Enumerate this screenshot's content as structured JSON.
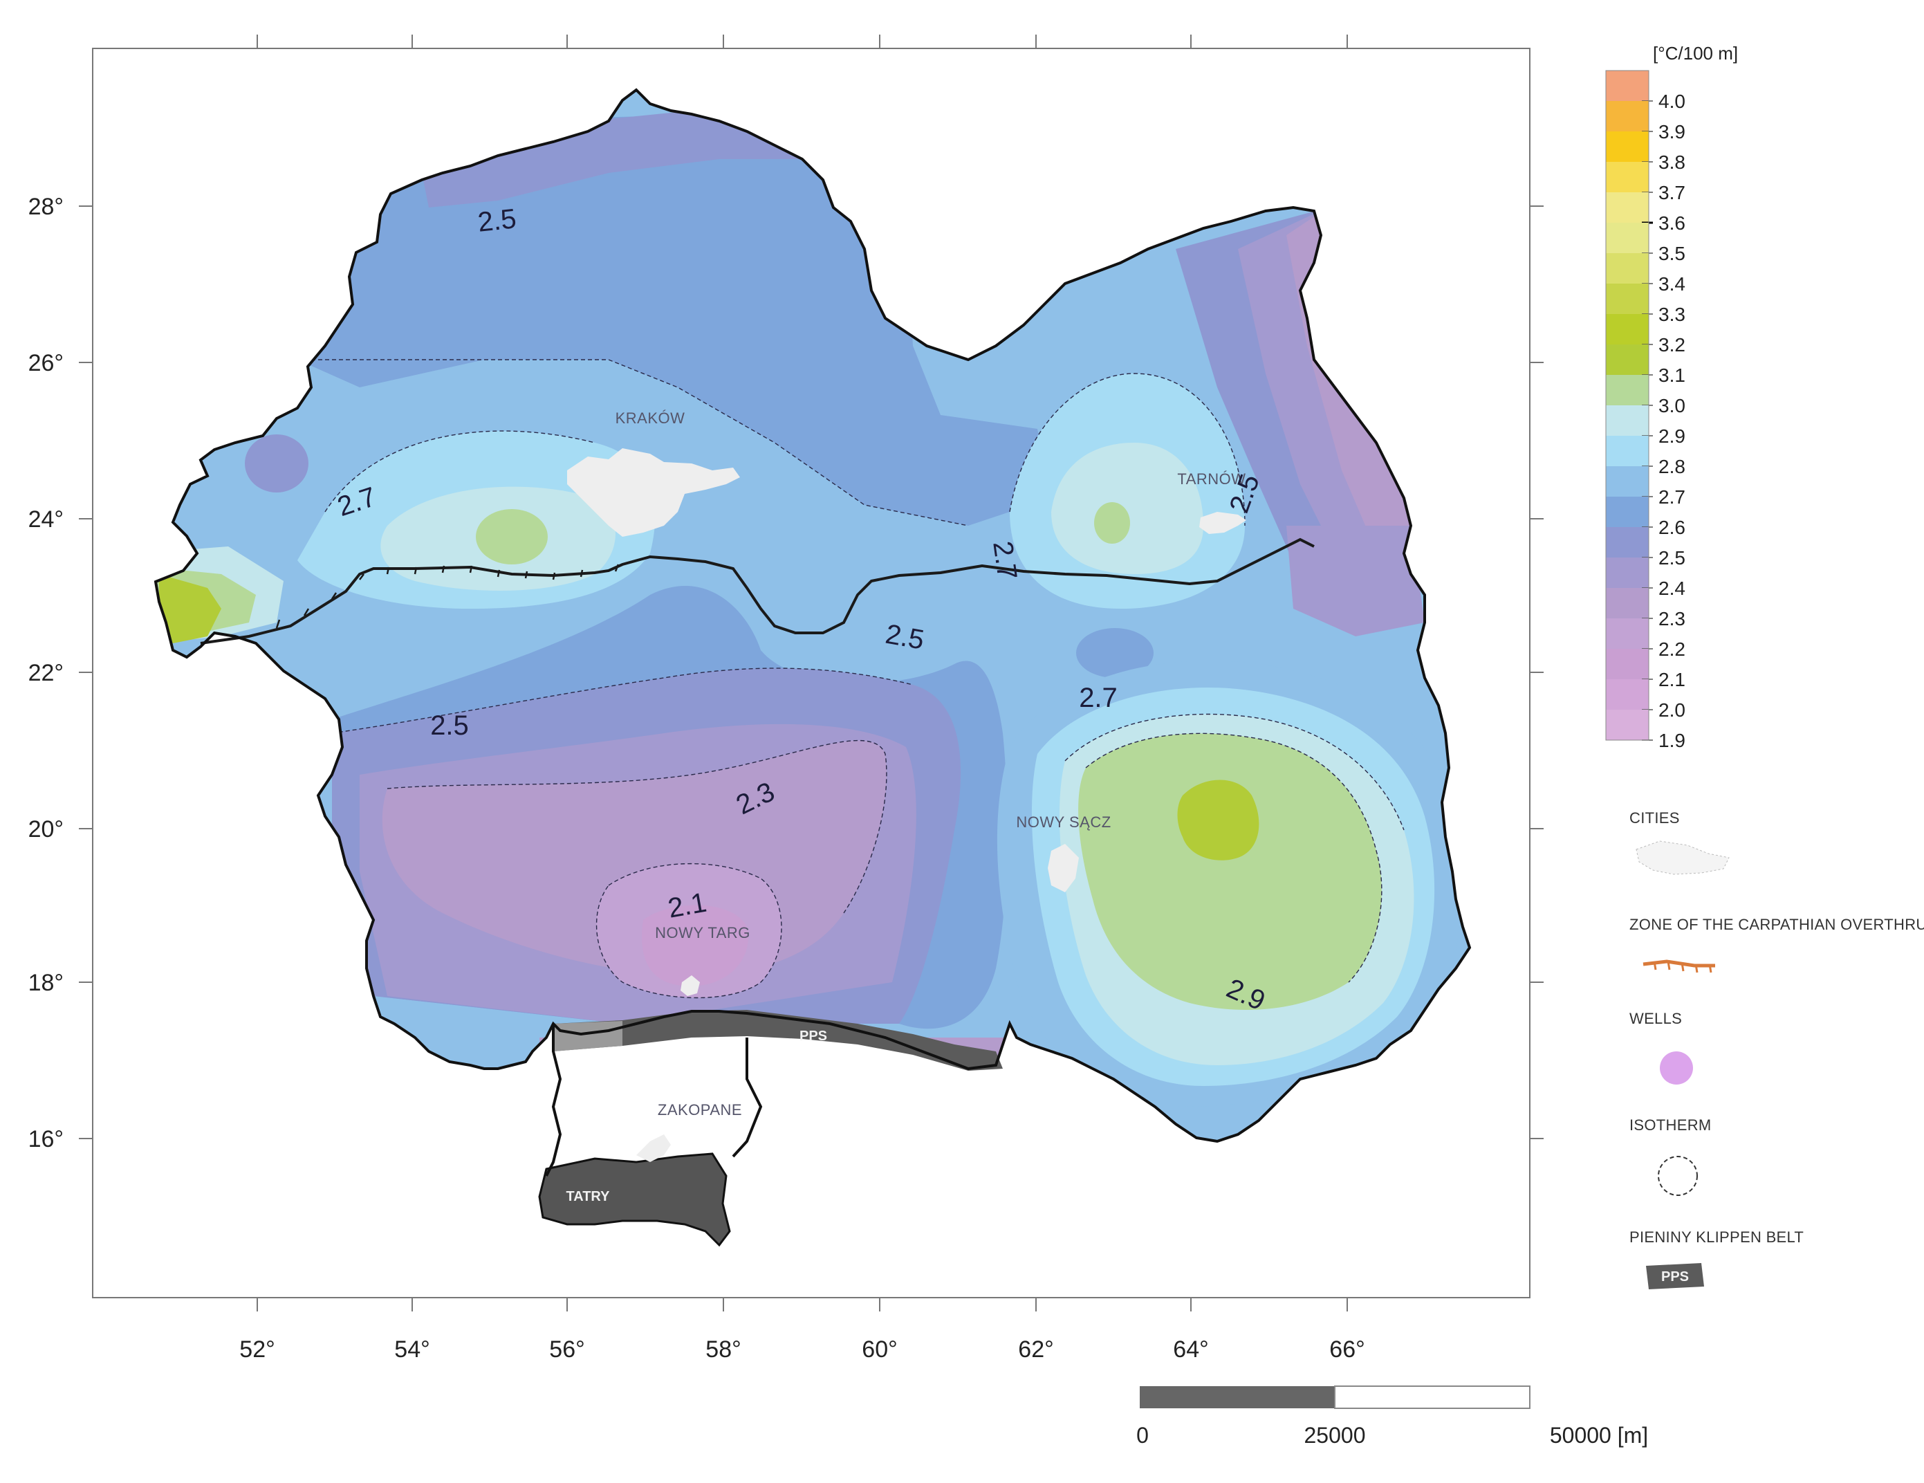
{
  "axes": {
    "x_ticks": [
      "52°",
      "54°",
      "56°",
      "58°",
      "60°",
      "62°",
      "64°",
      "66°"
    ],
    "y_ticks": [
      "28°",
      "26°",
      "24°",
      "22°",
      "20°",
      "18°",
      "16°"
    ]
  },
  "legend": {
    "unit": "[°C/100 m]",
    "values": [
      "4.0",
      "3.9",
      "3.8",
      "3.7",
      "3.6",
      "3.5",
      "3.4",
      "3.3",
      "3.2",
      "3.1",
      "3.0",
      "2.9",
      "2.8",
      "2.7",
      "2.6",
      "2.5",
      "2.4",
      "2.3",
      "2.2",
      "2.1",
      "2.0",
      "1.9"
    ],
    "colors": [
      "#f3a27a",
      "#f6b63a",
      "#f8ca1a",
      "#f6dc52",
      "#f0e888",
      "#e6e88a",
      "#dadf6a",
      "#c7d44a",
      "#bace2a",
      "#b2cc38",
      "#b5d999",
      "#c3e6ec",
      "#a6dcf4",
      "#8fc0e8",
      "#7ea6dc",
      "#8e98d2",
      "#a39ad0",
      "#b49ccc",
      "#c2a3d4",
      "#c99fd2",
      "#d2a6d8",
      "#d9b0dc"
    ]
  },
  "symbols": {
    "cities_title": "CITIES",
    "overthrust_title": "ZONE OF THE CARPATHIAN OVERTHRUST",
    "wells_title": "WELLS",
    "isotherm_title": "ISOTHERM",
    "klippen_title": "PIENINY KLIPPEN BELT",
    "klippen_abbr": "PPS"
  },
  "map": {
    "cities": [
      "KRAKÓW",
      "TARNÓW",
      "NOWY SĄCZ",
      "NOWY TARG",
      "ZAKOPANE"
    ],
    "tatry_label": "TATRY",
    "pps_label": "PPS",
    "contour_labels": [
      "2.5",
      "2.7",
      "2.7",
      "2.5",
      "2.5",
      "2.5",
      "2.7",
      "2.3",
      "2.1",
      "2.9"
    ]
  },
  "scale_bar": {
    "labels": [
      "0",
      "25000",
      "50000 [m]"
    ]
  },
  "colors": {
    "frame": "#777777",
    "border": "#111111",
    "belt": "#5b5b5b",
    "city_fill": "#eeeeee",
    "overthrust": "#1a1a1a"
  }
}
